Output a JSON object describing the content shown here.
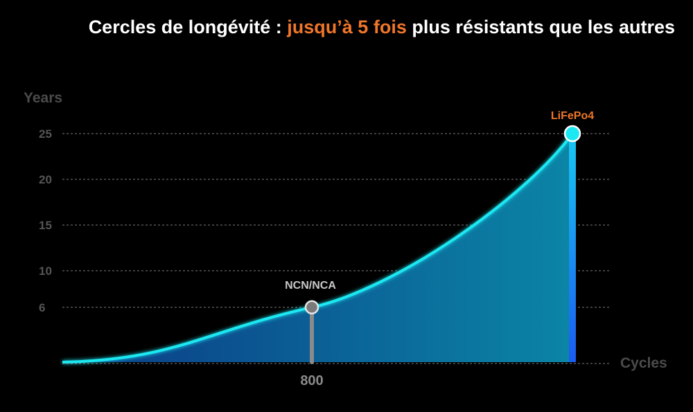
{
  "title": {
    "prefix": "Cercles de longévité : ",
    "highlight": "jusqu’à 5 fois",
    "suffix": " plus résistants que les autres"
  },
  "colors": {
    "highlight": "#f0762a",
    "curve": "#1be8f2",
    "fill_left": "#0b3a86",
    "fill_right": "#0b85a6",
    "nmc_marker": "#8a8a8a",
    "lfp_marker": "#1be8f2",
    "grid": "#9a9a9a"
  },
  "chart_data": {
    "type": "area",
    "title": "Cercles de longévité : jusqu’à 5 fois plus résistants que les autres",
    "xlabel": "Cycles",
    "ylabel": "Years",
    "x_ticks": [
      800
    ],
    "y_ticks": [
      6,
      10,
      15,
      20,
      25
    ],
    "ylim": [
      0,
      27
    ],
    "xlim": [
      0,
      4000
    ],
    "grid": true,
    "series": [
      {
        "values": [
          {
            "x": 0,
            "y": 0
          },
          {
            "x": 800,
            "y": 6
          },
          {
            "x": 4000,
            "y": 25
          }
        ]
      }
    ],
    "annotations": [
      {
        "label": "NCN/NCA",
        "x": 800,
        "y": 6,
        "color": "#8a8a8a",
        "label_color": "#c8c8c8"
      },
      {
        "label": "LiFePo4",
        "x": 4000,
        "y": 25,
        "color": "#1be8f2",
        "label_color": "#f0762a"
      }
    ],
    "highlight_tick": 25
  }
}
